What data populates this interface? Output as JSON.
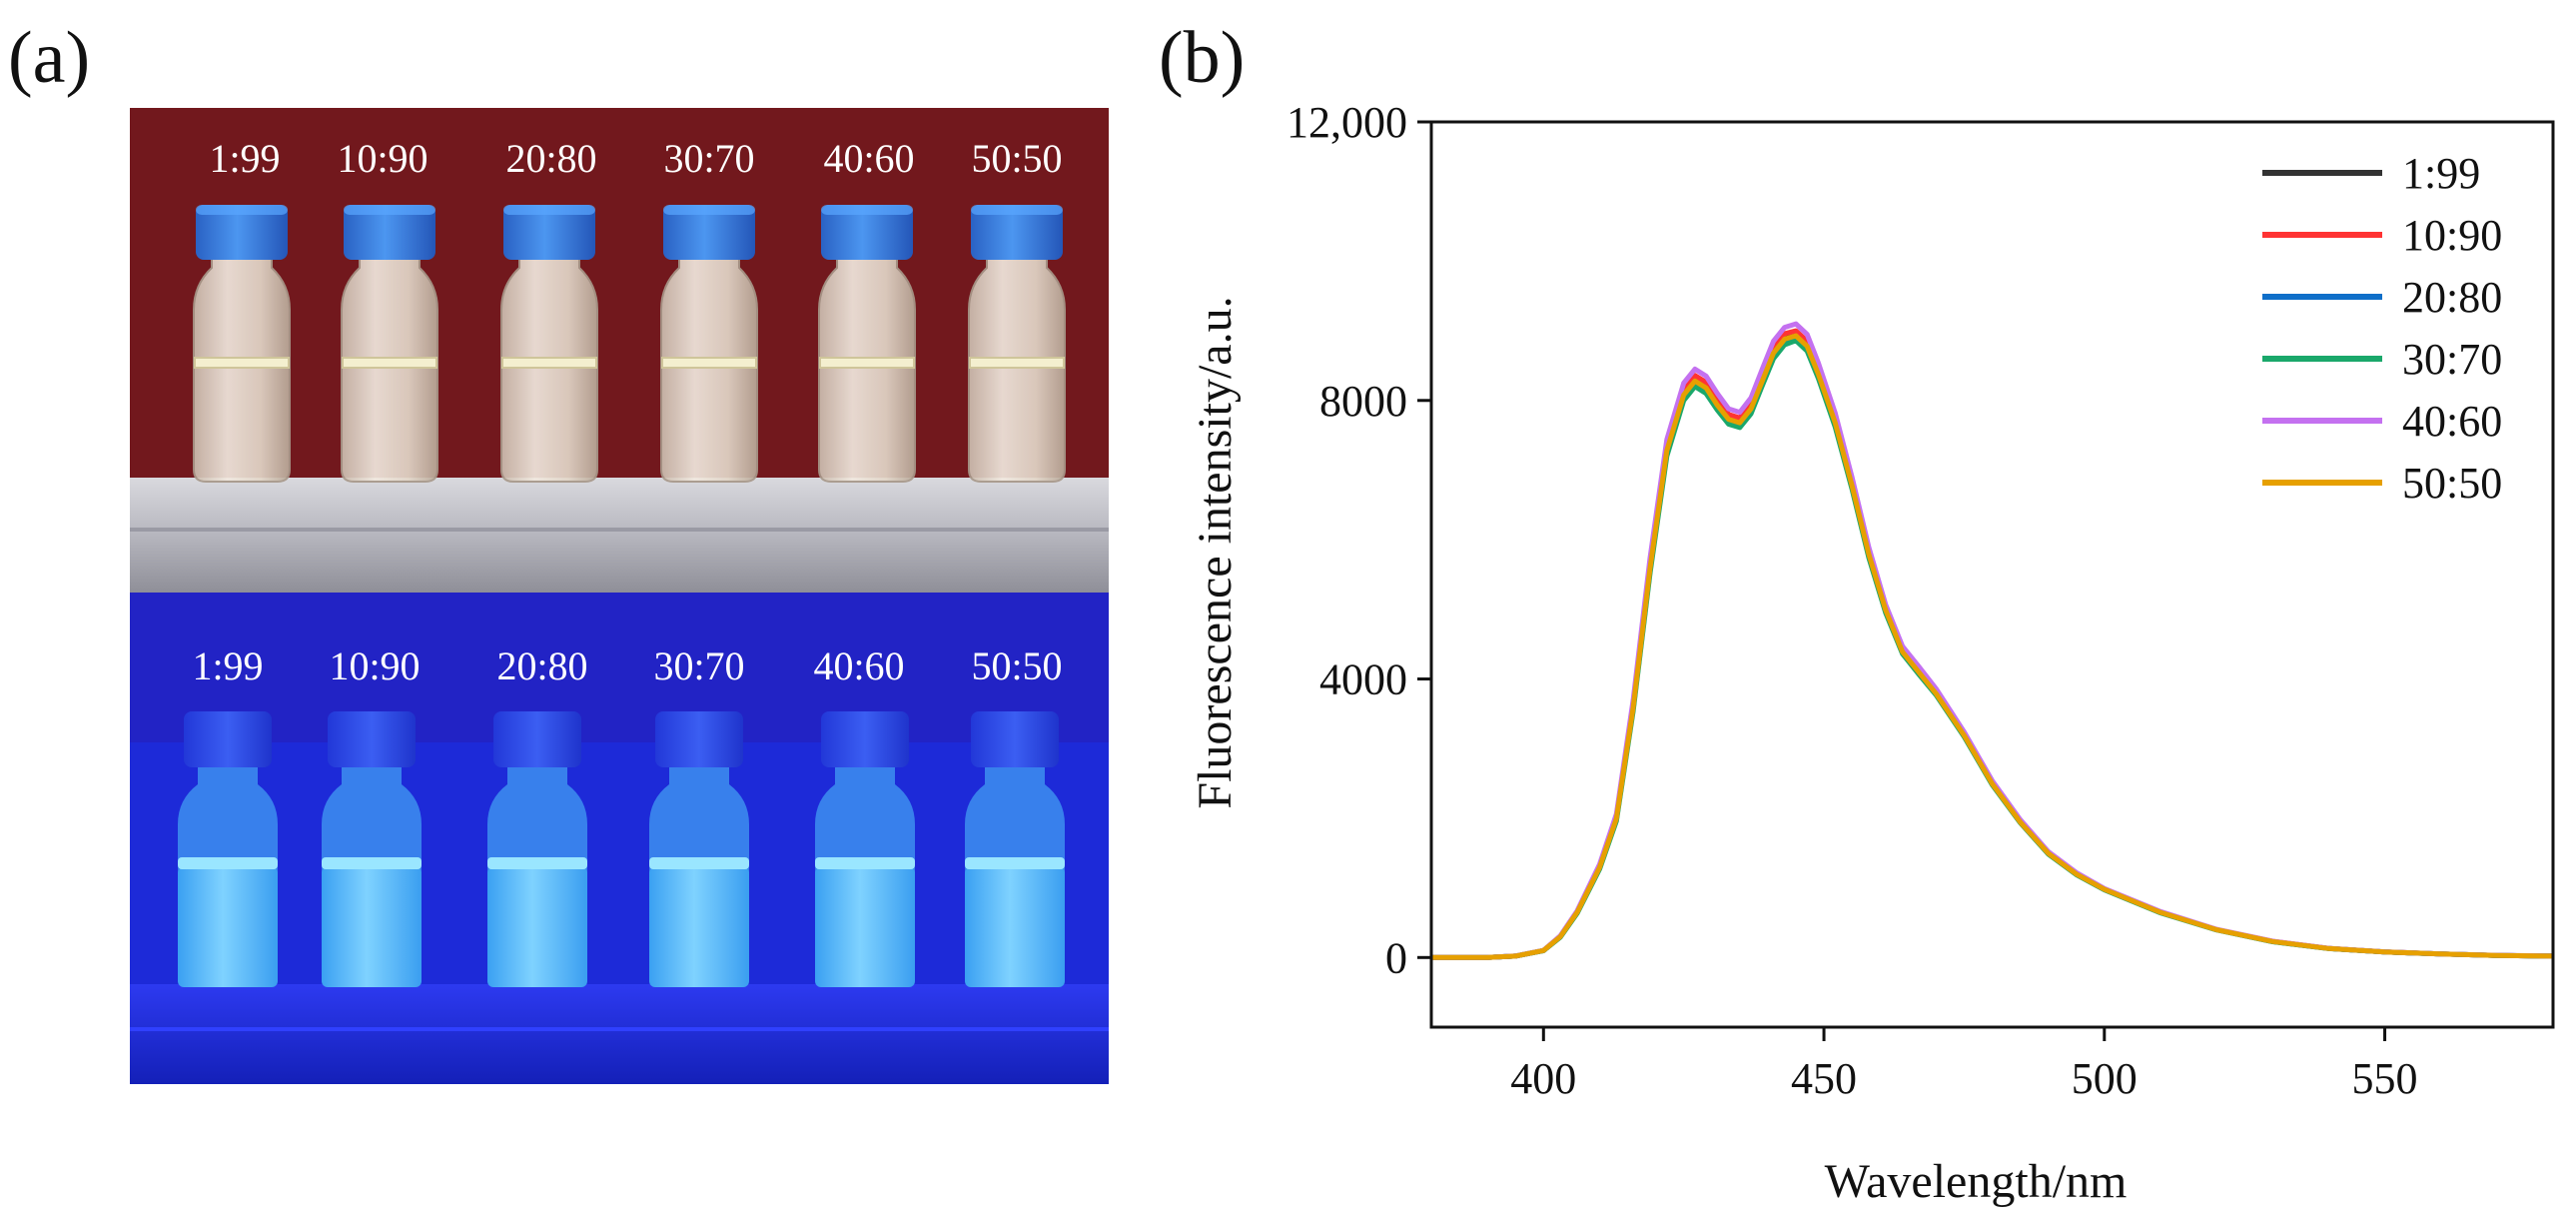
{
  "panel_a": {
    "label": "(a)",
    "daylight_row": {
      "ratios": [
        "1:99",
        "10:90",
        "20:80",
        "30:70",
        "40:60",
        "50:50"
      ],
      "bg_color": "#7d1c22",
      "cap_color": "#2f7ad6"
    },
    "uv_row": {
      "ratios": [
        "1:99",
        "10:90",
        "20:80",
        "30:70",
        "40:60",
        "50:50"
      ],
      "bg_color": "#1d2ad8",
      "glow_color": "#4fb8ff"
    }
  },
  "panel_b": {
    "label": "(b)"
  },
  "chart_data": {
    "type": "line",
    "title": "",
    "xlabel": "Wavelength/nm",
    "ylabel": "Fluorescence intensity/a.u.",
    "xlim": [
      380,
      580
    ],
    "ylim": [
      -1000,
      12000
    ],
    "xticks": [
      400,
      450,
      500,
      550
    ],
    "yticks": [
      0,
      4000,
      8000,
      12000
    ],
    "ytick_labels": [
      "0",
      "4000",
      "8000",
      "12,000"
    ],
    "grid": false,
    "legend_position": "top-right",
    "x": [
      380,
      390,
      395,
      400,
      403,
      406,
      410,
      413,
      416,
      419,
      422,
      425,
      427,
      429,
      431,
      433,
      435,
      437,
      439,
      441,
      443,
      445,
      447,
      449,
      452,
      455,
      458,
      461,
      464,
      467,
      470,
      475,
      480,
      485,
      490,
      495,
      500,
      510,
      520,
      530,
      540,
      550,
      560,
      570,
      580
    ],
    "series": [
      {
        "name": "1:99",
        "color": "#333333",
        "values": [
          0,
          0,
          20,
          100,
          300,
          650,
          1300,
          2000,
          3600,
          5600,
          7300,
          8100,
          8300,
          8200,
          7950,
          7750,
          7700,
          7900,
          8300,
          8700,
          8900,
          8950,
          8800,
          8400,
          7700,
          6800,
          5800,
          5000,
          4400,
          4100,
          3800,
          3200,
          2500,
          1950,
          1500,
          1200,
          980,
          650,
          400,
          230,
          130,
          80,
          50,
          30,
          20
        ]
      },
      {
        "name": "10:90",
        "color": "#ff3333",
        "values": [
          0,
          0,
          20,
          100,
          300,
          660,
          1320,
          2030,
          3650,
          5680,
          7380,
          8180,
          8360,
          8260,
          8010,
          7800,
          7750,
          7960,
          8370,
          8760,
          8960,
          9000,
          8850,
          8450,
          7740,
          6840,
          5840,
          5030,
          4430,
          4130,
          3830,
          3220,
          2520,
          1960,
          1510,
          1210,
          985,
          655,
          402,
          232,
          131,
          81,
          51,
          30,
          20
        ]
      },
      {
        "name": "20:80",
        "color": "#0f6fc9",
        "values": [
          0,
          0,
          20,
          100,
          295,
          640,
          1280,
          1980,
          3570,
          5550,
          7240,
          8040,
          8240,
          8140,
          7900,
          7700,
          7650,
          7850,
          8250,
          8640,
          8840,
          8900,
          8750,
          8360,
          7660,
          6760,
          5770,
          4970,
          4380,
          4080,
          3780,
          3180,
          2490,
          1940,
          1490,
          1195,
          975,
          645,
          398,
          228,
          129,
          79,
          50,
          30,
          20
        ]
      },
      {
        "name": "30:70",
        "color": "#1aa86b",
        "values": [
          0,
          0,
          20,
          98,
          290,
          635,
          1270,
          1960,
          3540,
          5520,
          7200,
          8000,
          8200,
          8100,
          7860,
          7660,
          7610,
          7810,
          8210,
          8600,
          8800,
          8860,
          8710,
          8320,
          7620,
          6730,
          5740,
          4950,
          4360,
          4060,
          3770,
          3170,
          2480,
          1935,
          1485,
          1190,
          972,
          642,
          396,
          227,
          128,
          79,
          50,
          30,
          20
        ]
      },
      {
        "name": "40:60",
        "color": "#c471f0",
        "values": [
          0,
          0,
          21,
          102,
          310,
          670,
          1340,
          2060,
          3700,
          5740,
          7440,
          8250,
          8450,
          8350,
          8100,
          7880,
          7830,
          8040,
          8450,
          8850,
          9050,
          9100,
          8950,
          8540,
          7820,
          6900,
          5890,
          5070,
          4470,
          4170,
          3860,
          3240,
          2540,
          1980,
          1520,
          1220,
          990,
          660,
          405,
          234,
          132,
          82,
          51,
          31,
          20
        ]
      },
      {
        "name": "50:50",
        "color": "#e6a000",
        "values": [
          0,
          0,
          20,
          100,
          298,
          648,
          1295,
          1995,
          3590,
          5590,
          7280,
          8080,
          8280,
          8180,
          7930,
          7730,
          7680,
          7880,
          8280,
          8680,
          8880,
          8930,
          8780,
          8380,
          7680,
          6780,
          5790,
          4990,
          4390,
          4090,
          3790,
          3190,
          2495,
          1945,
          1495,
          1198,
          978,
          648,
          399,
          229,
          129,
          80,
          50,
          30,
          20
        ]
      }
    ]
  }
}
